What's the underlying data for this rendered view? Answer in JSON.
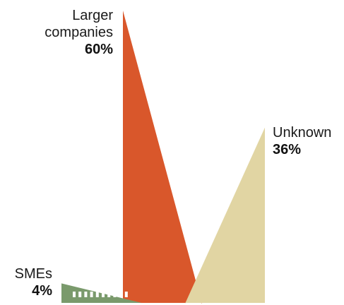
{
  "chart_data": {
    "type": "bar",
    "title": "",
    "xlabel": "",
    "ylabel": "",
    "ylim": [
      0,
      60
    ],
    "grid": false,
    "legend": "none",
    "categories": [
      {
        "lines": [
          "Larger",
          "companies"
        ],
        "value": 60,
        "value_label": "60%",
        "color": "#d9572b",
        "key": "larger"
      },
      {
        "lines": [
          "Unknown"
        ],
        "value": 36,
        "value_label": "36%",
        "color": "#e1d5a3",
        "key": "unknown"
      },
      {
        "lines": [
          "SMEs"
        ],
        "value": 4,
        "value_label": "4%",
        "color": "#7a9a6c",
        "key": "smes"
      }
    ]
  }
}
